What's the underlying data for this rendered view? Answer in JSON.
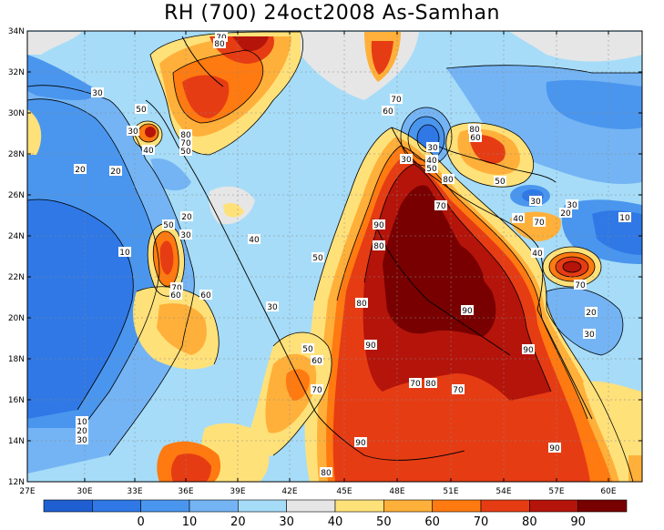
{
  "title": "RH (700) 24oct2008 As-Samhan",
  "lat_ticks": [
    "34N",
    "32N",
    "30N",
    "28N",
    "26N",
    "24N",
    "22N",
    "20N",
    "18N",
    "16N",
    "14N",
    "12N"
  ],
  "lon_ticks": [
    "27E",
    "30E",
    "33E",
    "36E",
    "39E",
    "42E",
    "45E",
    "48E",
    "51E",
    "54E",
    "57E",
    "60E"
  ],
  "colorbar": {
    "colors": [
      "#1f5fd2",
      "#2f78e6",
      "#4a96ee",
      "#74b4f4",
      "#a6dcf8",
      "#e6e6e6",
      "#ffe17a",
      "#ffb03a",
      "#ff7a10",
      "#e63c14",
      "#b4140a",
      "#780000"
    ],
    "labels": [
      "0",
      "10",
      "20",
      "30",
      "40",
      "50",
      "60",
      "70",
      "80",
      "90"
    ]
  },
  "contour_labels": [
    {
      "t": "70"
    },
    {
      "t": "80"
    },
    {
      "t": "30"
    },
    {
      "t": "50"
    },
    {
      "t": "30"
    },
    {
      "t": "40"
    },
    {
      "t": "80"
    },
    {
      "t": "70"
    },
    {
      "t": "50"
    },
    {
      "t": "70"
    },
    {
      "t": "60"
    },
    {
      "t": "30"
    },
    {
      "t": "40"
    },
    {
      "t": "30"
    },
    {
      "t": "20"
    },
    {
      "t": "20"
    },
    {
      "t": "80"
    },
    {
      "t": "70"
    },
    {
      "t": "50"
    },
    {
      "t": "80"
    },
    {
      "t": "60"
    },
    {
      "t": "50"
    },
    {
      "t": "30"
    },
    {
      "t": "30"
    },
    {
      "t": "40"
    },
    {
      "t": "70"
    },
    {
      "t": "20"
    },
    {
      "t": "10"
    },
    {
      "t": "20"
    },
    {
      "t": "50"
    },
    {
      "t": "30"
    },
    {
      "t": "90"
    },
    {
      "t": "80"
    },
    {
      "t": "40"
    },
    {
      "t": "40"
    },
    {
      "t": "10"
    },
    {
      "t": "50"
    },
    {
      "t": "70"
    },
    {
      "t": "60"
    },
    {
      "t": "60"
    },
    {
      "t": "30"
    },
    {
      "t": "80"
    },
    {
      "t": "70"
    },
    {
      "t": "20"
    },
    {
      "t": "90"
    },
    {
      "t": "90"
    },
    {
      "t": "50"
    },
    {
      "t": "60"
    },
    {
      "t": "90"
    },
    {
      "t": "30"
    },
    {
      "t": "70"
    },
    {
      "t": "70"
    },
    {
      "t": "80"
    },
    {
      "t": "70"
    },
    {
      "t": "10"
    },
    {
      "t": "20"
    },
    {
      "t": "30"
    },
    {
      "t": "90"
    },
    {
      "t": "90"
    },
    {
      "t": "80"
    }
  ]
}
